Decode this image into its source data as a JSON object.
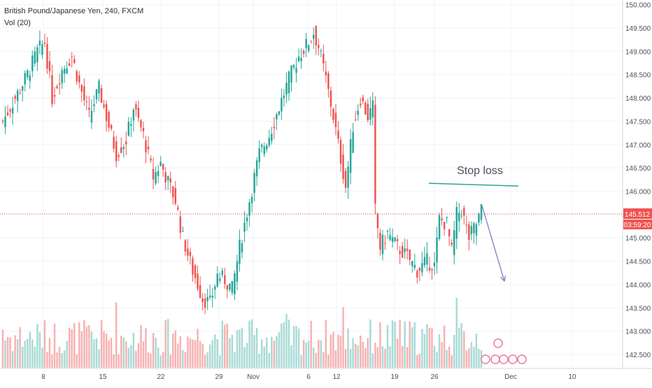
{
  "header": {
    "symbol": "British Pound/Japanese Yen",
    "interval": "240",
    "exchange": "FXCM",
    "title": "British Pound/Japanese Yen, 240, FXCM",
    "volume_indicator": "Vol (20)"
  },
  "annotations": {
    "stop_loss_label": "Stop loss",
    "stop_loss_level": 146.14,
    "price_line": 145.512,
    "arrow": {
      "from_price": 145.69,
      "to_price": 144.07
    }
  },
  "price_badge": {
    "price": "145.512",
    "countdown": "03:59:20",
    "color": "#ef5350"
  },
  "colors": {
    "up": "#26a69a",
    "down": "#ef5350",
    "vol_up": "#9fd6d0",
    "vol_down": "#f6a9a8",
    "stop_line": "#26a69a",
    "arrow": "#7b7fc2",
    "grid": "#f0f3fa",
    "axis_text": "#4a4f5c"
  },
  "chart_data": {
    "type": "candlestick",
    "title": "British Pound/Japanese Yen, 240, FXCM",
    "ylim": [
      142.2,
      150.1
    ],
    "y_ticks": [
      150.0,
      149.5,
      149.0,
      148.5,
      148.0,
      147.5,
      147.0,
      146.5,
      146.0,
      145.5,
      145.0,
      144.5,
      144.0,
      143.5,
      143.0,
      142.5
    ],
    "y_tick_labels": [
      "150.000",
      "149.500",
      "149.000",
      "148.500",
      "148.000",
      "147.500",
      "147.000",
      "146.500",
      "146.000",
      "145.500",
      "145.000",
      "144.500",
      "144.000",
      "143.500",
      "143.000",
      "142.500"
    ],
    "x_tick_labels": [
      "8",
      "15",
      "22",
      "29",
      "Nov",
      "6",
      "12",
      "19",
      "26",
      "Dec",
      "10"
    ],
    "grid": true,
    "ohlc_anchors": [
      {
        "i": 0,
        "price": 147.5
      },
      {
        "i": 4,
        "price": 147.9
      },
      {
        "i": 10,
        "price": 148.5
      },
      {
        "i": 14,
        "price": 149.0
      },
      {
        "i": 17,
        "price": 149.2
      },
      {
        "i": 20,
        "price": 148.0
      },
      {
        "i": 24,
        "price": 148.6
      },
      {
        "i": 28,
        "price": 148.9
      },
      {
        "i": 31,
        "price": 148.3
      },
      {
        "i": 35,
        "price": 147.6
      },
      {
        "i": 39,
        "price": 148.2
      },
      {
        "i": 43,
        "price": 147.4
      },
      {
        "i": 46,
        "price": 146.8
      },
      {
        "i": 50,
        "price": 147.1
      },
      {
        "i": 53,
        "price": 147.8
      },
      {
        "i": 57,
        "price": 147.2
      },
      {
        "i": 61,
        "price": 146.3
      },
      {
        "i": 64,
        "price": 146.6
      },
      {
        "i": 67,
        "price": 146.2
      },
      {
        "i": 70,
        "price": 145.8
      },
      {
        "i": 73,
        "price": 145.0
      },
      {
        "i": 77,
        "price": 144.3
      },
      {
        "i": 81,
        "price": 143.7
      },
      {
        "i": 84,
        "price": 143.6
      },
      {
        "i": 87,
        "price": 144.2
      },
      {
        "i": 90,
        "price": 144.1
      },
      {
        "i": 93,
        "price": 143.9
      },
      {
        "i": 96,
        "price": 144.8
      },
      {
        "i": 100,
        "price": 145.8
      },
      {
        "i": 104,
        "price": 146.8
      },
      {
        "i": 108,
        "price": 147.2
      },
      {
        "i": 112,
        "price": 147.8
      },
      {
        "i": 116,
        "price": 148.4
      },
      {
        "i": 120,
        "price": 148.9
      },
      {
        "i": 124,
        "price": 149.2
      },
      {
        "i": 126,
        "price": 149.4
      },
      {
        "i": 128,
        "price": 149.1
      },
      {
        "i": 131,
        "price": 148.4
      },
      {
        "i": 134,
        "price": 147.6
      },
      {
        "i": 137,
        "price": 146.7
      },
      {
        "i": 139,
        "price": 146.1
      },
      {
        "i": 142,
        "price": 147.4
      },
      {
        "i": 145,
        "price": 148.0
      },
      {
        "i": 148,
        "price": 147.6
      },
      {
        "i": 150,
        "price": 147.8
      },
      {
        "i": 151,
        "price": 145.6
      },
      {
        "i": 153,
        "price": 144.8
      },
      {
        "i": 156,
        "price": 145.1
      },
      {
        "i": 160,
        "price": 144.8
      },
      {
        "i": 164,
        "price": 144.6
      },
      {
        "i": 168,
        "price": 144.3
      },
      {
        "i": 172,
        "price": 144.5
      },
      {
        "i": 175,
        "price": 144.4
      },
      {
        "i": 177,
        "price": 145.4
      },
      {
        "i": 180,
        "price": 145.3
      },
      {
        "i": 182,
        "price": 144.7
      },
      {
        "i": 184,
        "price": 145.5
      },
      {
        "i": 186,
        "price": 145.6
      },
      {
        "i": 189,
        "price": 145.0
      },
      {
        "i": 192,
        "price": 145.3
      },
      {
        "i": 194,
        "price": 145.6
      }
    ],
    "candle_count": 195,
    "x_range_days": [
      "Oct 5",
      "Dec 11"
    ],
    "volume": {
      "label": "Vol (20)"
    }
  }
}
